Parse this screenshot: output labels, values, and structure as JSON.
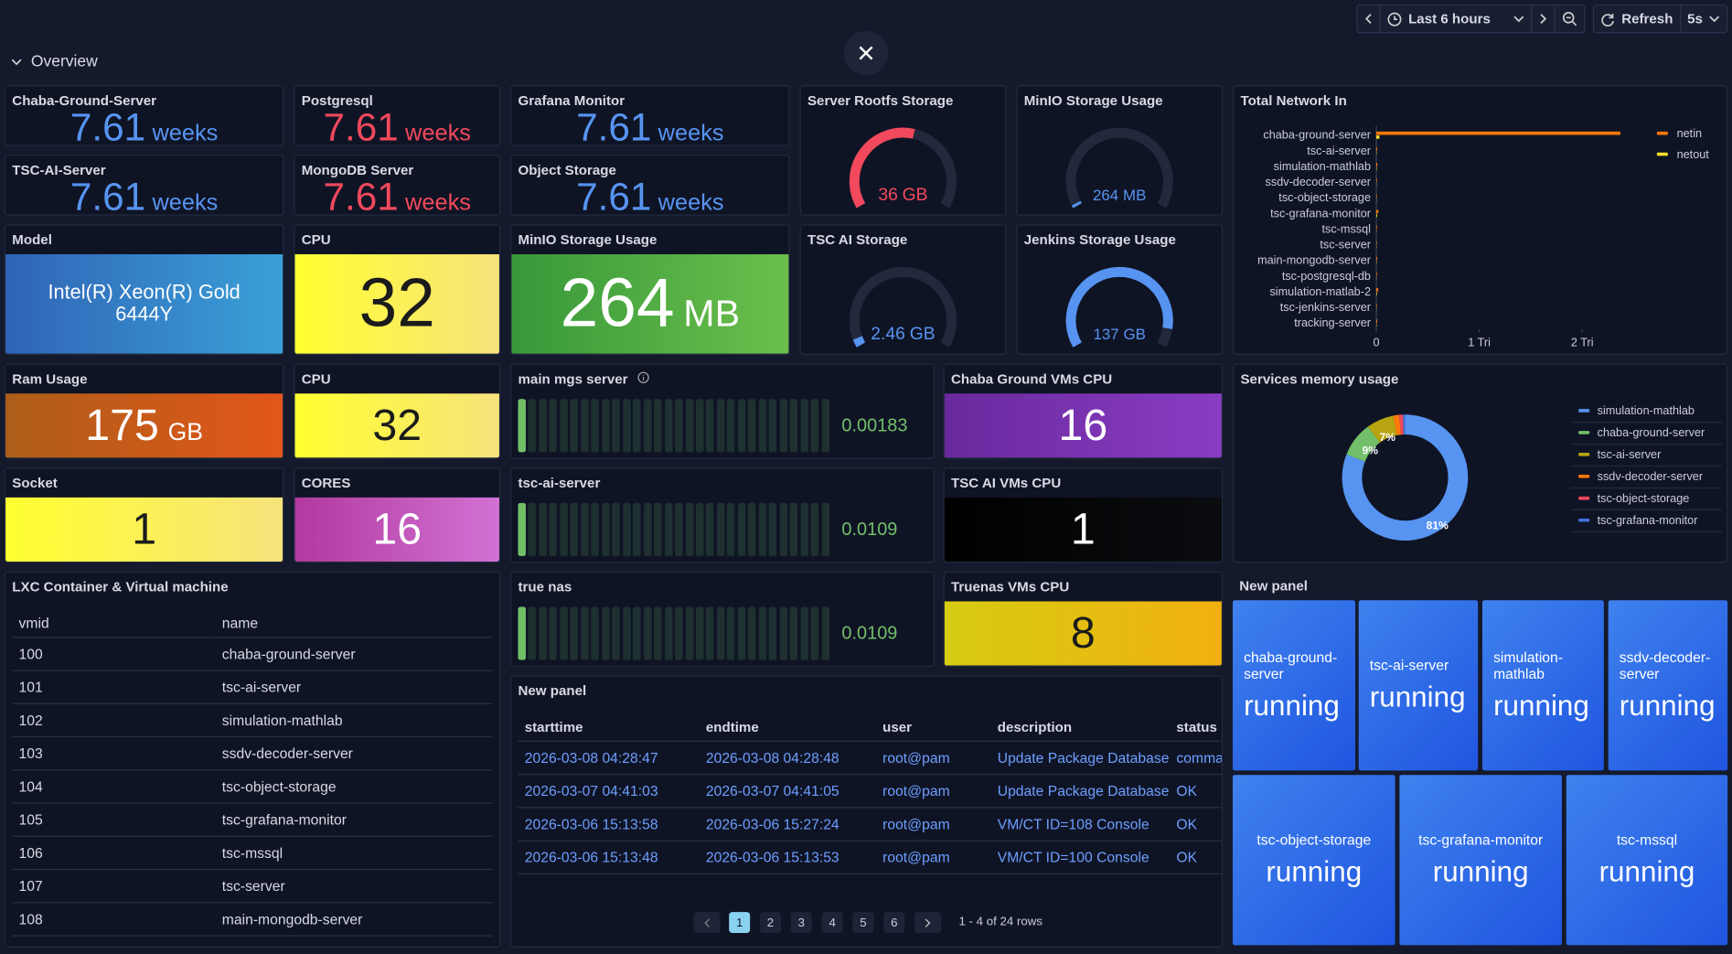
{
  "toolbar": {
    "time_range": "Last 6 hours",
    "refresh_label": "Refresh",
    "refresh_interval": "5s"
  },
  "row_title": "Overview",
  "panels": [
    {
      "kind": "stat",
      "title": "Chaba-Ground-Server",
      "value": "7.61",
      "unit": "weeks",
      "color": "#5794f2"
    },
    {
      "kind": "stat",
      "title": "Postgresql",
      "value": "7.61",
      "unit": "weeks",
      "color": "#f2495c"
    },
    {
      "kind": "stat",
      "title": "Grafana Monitor",
      "value": "7.61",
      "unit": "weeks",
      "color": "#5794f2"
    },
    {
      "kind": "stat",
      "title": "TSC-AI-Server",
      "value": "7.61",
      "unit": "weeks",
      "color": "#5794f2"
    },
    {
      "kind": "stat",
      "title": "MongoDB Server",
      "value": "7.61",
      "unit": "weeks",
      "color": "#f2495c"
    },
    {
      "kind": "stat",
      "title": "Object Storage",
      "value": "7.61",
      "unit": "weeks",
      "color": "#5794f2"
    },
    {
      "kind": "gauge",
      "title": "Server Rootfs Storage",
      "value": 36,
      "unit": "GB",
      "range": [
        0,
        65
      ],
      "color": "#f2495c"
    },
    {
      "kind": "gauge",
      "title": "MinIO Storage Usage",
      "value": 264,
      "unit": "MB",
      "range": [
        0,
        20000
      ],
      "color": "#5794f2"
    },
    {
      "kind": "bar",
      "title": "Total Network In",
      "chart": {
        "type": "bar",
        "orientation": "horizontal",
        "categories": [
          "chaba-ground-server",
          "tsc-ai-server",
          "simulation-mathlab",
          "ssdv-decoder-server",
          "tsc-object-storage",
          "tsc-grafana-monitor",
          "tsc-mssql",
          "tsc-server",
          "main-mongodb-server",
          "tsc-postgresql-db",
          "simulation-matlab-2",
          "tsc-jenkins-server",
          "tracking-server"
        ],
        "series": [
          {
            "name": "netin",
            "color": "#ff780a",
            "values": [
              2370000000000,
              8000000000,
              10000000000,
              6000000000,
              5000000000,
              20000000000,
              6000000000,
              5000000000,
              8000000000,
              6000000000,
              18000000000,
              5000000000,
              8000000000
            ]
          },
          {
            "name": "netout",
            "color": "#fade2a",
            "values": [
              30000000000,
              3000000000,
              4000000000,
              2000000000,
              2000000000,
              8000000000,
              2000000000,
              2000000000,
              3000000000,
              2000000000,
              6000000000,
              2000000000,
              3000000000
            ]
          }
        ],
        "xlim": [
          0,
          2500000000000
        ],
        "xticks": [
          0,
          {
            "value": 1000000000000,
            "label": "1 Tri"
          },
          {
            "value": 2000000000000,
            "label": "2 Tri"
          }
        ],
        "legend": "right"
      }
    },
    {
      "kind": "fill",
      "title": "Model",
      "value": "Intel(R) Xeon(R) Gold 6444Y",
      "background": [
        "#3064b6",
        "#3aa0d8"
      ],
      "text_color": "#ffffff"
    },
    {
      "kind": "fill",
      "title": "CPU",
      "value": "32",
      "background": [
        "#ffff30",
        "#f8e27c"
      ],
      "text_color": "#1b1b1b"
    },
    {
      "kind": "fill",
      "title": "MinIO Storage Usage",
      "value": "264",
      "unit": "MB",
      "background": [
        "#37993a",
        "#6cbf4c"
      ],
      "text_color": "#ffffff"
    },
    {
      "kind": "gauge",
      "title": "TSC AI Storage",
      "value": 2.46,
      "unit": "GB",
      "range": [
        0,
        65
      ],
      "color": "#5794f2"
    },
    {
      "kind": "gauge",
      "title": "Jenkins Storage Usage",
      "value": 137,
      "unit": "GB",
      "range": [
        0,
        150
      ],
      "color": "#5794f2"
    },
    {
      "kind": "fill",
      "title": "Ram Usage",
      "value": "175",
      "unit": "GB",
      "background": [
        "#ad5e18",
        "#e2561a"
      ],
      "text_color": "#ffffff"
    },
    {
      "kind": "fill",
      "title": "CPU",
      "value": "32",
      "background": [
        "#ffff30",
        "#f8e27c"
      ],
      "text_color": "#1b1b1b"
    },
    {
      "kind": "bargauge",
      "title": "main mgs server",
      "value": "0.00183",
      "color": "#73bf69"
    },
    {
      "kind": "fill",
      "title": "Chaba Ground VMs CPU",
      "value": "16",
      "background": [
        "#692a9e",
        "#8a3cc2"
      ],
      "text_color": "#ffffff"
    },
    {
      "kind": "donut",
      "title": "Services memory usage",
      "chart": {
        "type": "pie",
        "donut": true,
        "categories": [
          "simulation-mathlab",
          "chaba-ground-server",
          "tsc-ai-server",
          "ssdv-decoder-server",
          "tsc-object-storage",
          "tsc-grafana-monitor"
        ],
        "values": [
          81,
          9,
          7,
          1.5,
          1,
          0.5
        ],
        "value_labels": [
          "81%",
          "9%",
          "7%",
          null,
          null,
          null
        ],
        "colors": [
          "#5794f2",
          "#73bf69",
          "#b8a410",
          "#ff780a",
          "#f2495c",
          "#3d71d9"
        ],
        "legend": "right"
      }
    },
    {
      "kind": "fill",
      "title": "Socket",
      "value": "1",
      "background": [
        "#ffff30",
        "#f8e27c"
      ],
      "text_color": "#1b1b1b"
    },
    {
      "kind": "fill",
      "title": "CORES",
      "value": "16",
      "background": [
        "#b2399f",
        "#d272d4"
      ],
      "text_color": "#ffffff"
    },
    {
      "kind": "bargauge",
      "title": "tsc-ai-server",
      "value": "0.0109",
      "color": "#73bf69"
    },
    {
      "kind": "fill",
      "title": "TSC AI VMs CPU",
      "value": "1",
      "background": [
        "#000000",
        "#0b0c10"
      ],
      "text_color": "#ffffff"
    },
    {
      "kind": "table",
      "title": "LXC Container & Virtual machine",
      "columns": [
        "vmid",
        "name"
      ],
      "rows": [
        [
          "100",
          "chaba-ground-server"
        ],
        [
          "101",
          "tsc-ai-server"
        ],
        [
          "102",
          "simulation-mathlab"
        ],
        [
          "103",
          "ssdv-decoder-server"
        ],
        [
          "104",
          "tsc-object-storage"
        ],
        [
          "105",
          "tsc-grafana-monitor"
        ],
        [
          "106",
          "tsc-mssql"
        ],
        [
          "107",
          "tsc-server"
        ],
        [
          "108",
          "main-mongodb-server"
        ]
      ]
    },
    {
      "kind": "bargauge",
      "title": "true nas",
      "value": "0.0109",
      "color": "#73bf69"
    },
    {
      "kind": "fill",
      "title": "Truenas VMs CPU",
      "value": "8",
      "background": [
        "#d6cc12",
        "#f2b010"
      ],
      "text_color": "#1b1b1b"
    },
    {
      "kind": "tasks",
      "title": "New panel",
      "columns": [
        "starttime",
        "endtime",
        "user",
        "description",
        "status"
      ],
      "rows": [
        [
          "2026-03-08 04:28:47",
          "2026-03-08 04:28:48",
          "root@pam",
          "Update Package Database",
          "command 'apt-"
        ],
        [
          "2026-03-07 04:41:03",
          "2026-03-07 04:41:05",
          "root@pam",
          "Update Package Database",
          "OK"
        ],
        [
          "2026-03-06 15:13:58",
          "2026-03-06 15:27:24",
          "root@pam",
          "VM/CT ID=108 Console",
          "OK"
        ],
        [
          "2026-03-06 15:13:48",
          "2026-03-06 15:13:53",
          "root@pam",
          "VM/CT ID=100 Console",
          "OK"
        ]
      ],
      "pages": [
        "1",
        "2",
        "3",
        "4",
        "5",
        "6"
      ],
      "current_page": "1",
      "summary": "1 - 4 of 24 rows"
    },
    {
      "kind": "status",
      "title": "New panel",
      "tiles": [
        {
          "name": "chaba-ground-server",
          "status": "running"
        },
        {
          "name": "tsc-ai-server",
          "status": "running"
        },
        {
          "name": "simulation-mathlab",
          "status": "running"
        },
        {
          "name": "ssdv-decoder-server",
          "status": "running"
        },
        {
          "name": "tsc-object-storage",
          "status": "running"
        },
        {
          "name": "tsc-grafana-monitor",
          "status": "running"
        },
        {
          "name": "tsc-mssql",
          "status": "running"
        }
      ]
    }
  ]
}
